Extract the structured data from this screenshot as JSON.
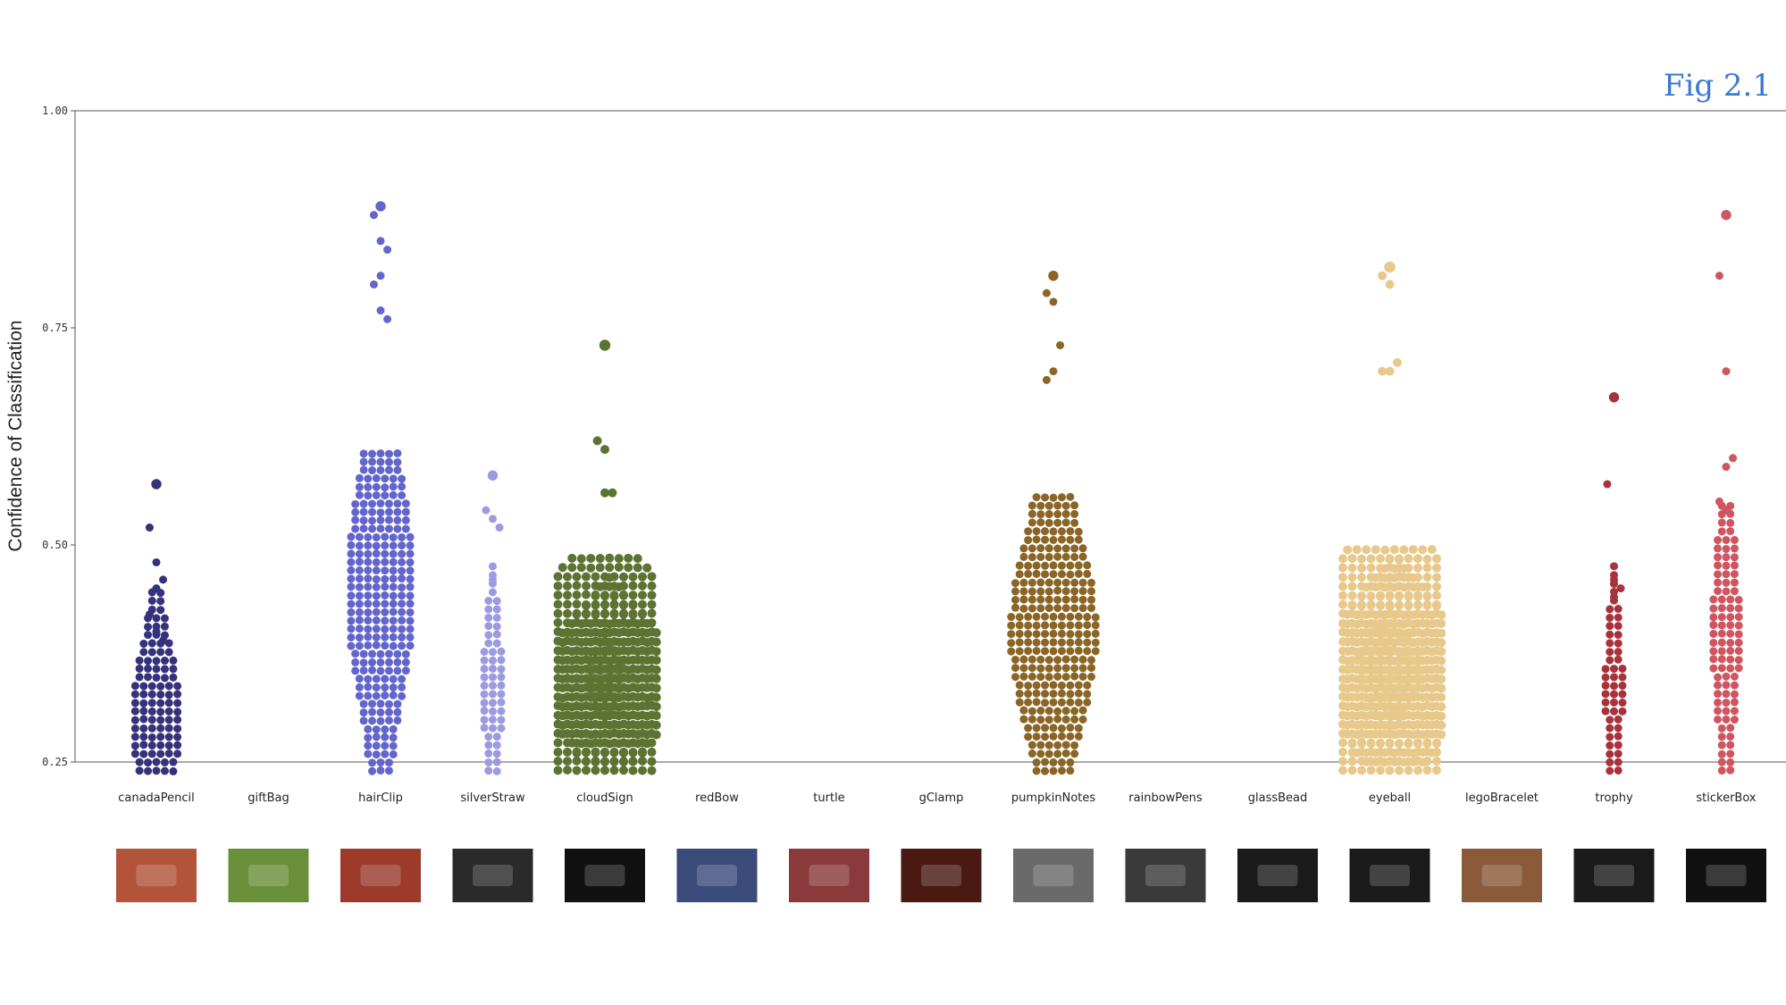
{
  "figure_label": "Fig 2.1",
  "chart_data": {
    "type": "scatter",
    "subtype": "beeswarm",
    "ylabel": "Confidence of Classification",
    "xlabel": "",
    "ylim": [
      0.25,
      1.0
    ],
    "yticks": [
      "0.25",
      "0.50",
      "0.75",
      "1.00"
    ],
    "categories": [
      "canadaPencil",
      "giftBag",
      "hairClip",
      "silverStraw",
      "cloudSign",
      "redBow",
      "turtle",
      "gClamp",
      "pumpkinNotes",
      "rainbowPens",
      "glassBead",
      "eyeball",
      "legoBracelet",
      "trophy",
      "stickerBox"
    ],
    "series": [
      {
        "category": "canadaPencil",
        "color": "#35317a",
        "count": 110,
        "median": 0.3,
        "max": 0.57,
        "outliers": [
          0.57,
          0.52,
          0.48,
          0.46,
          0.45,
          0.42,
          0.4,
          0.39
        ]
      },
      {
        "category": "giftBag",
        "color": "#cccccc",
        "count": 0,
        "median": null,
        "max": null,
        "outliers": []
      },
      {
        "category": "hairClip",
        "color": "#6365cc",
        "count": 260,
        "median": 0.45,
        "max": 0.89,
        "outliers": [
          0.89,
          0.88,
          0.85,
          0.84,
          0.81,
          0.8,
          0.77,
          0.76
        ]
      },
      {
        "category": "silverStraw",
        "color": "#9d9be0",
        "count": 60,
        "median": 0.33,
        "max": 0.58,
        "outliers": [
          0.58,
          0.54,
          0.53,
          0.52,
          0.46
        ]
      },
      {
        "category": "cloudSign",
        "color": "#5d7331",
        "count": 480,
        "median": 0.33,
        "max": 0.73,
        "outliers": [
          0.73,
          0.62,
          0.61,
          0.56,
          0.56
        ]
      },
      {
        "category": "redBow",
        "color": "#cccccc",
        "count": 0,
        "median": null,
        "max": null,
        "outliers": []
      },
      {
        "category": "turtle",
        "color": "#cccccc",
        "count": 0,
        "median": null,
        "max": null,
        "outliers": []
      },
      {
        "category": "gClamp",
        "color": "#cccccc",
        "count": 0,
        "median": null,
        "max": null,
        "outliers": []
      },
      {
        "category": "pumpkinNotes",
        "color": "#8a6526",
        "count": 280,
        "median": 0.4,
        "max": 0.81,
        "outliers": [
          0.81,
          0.79,
          0.78,
          0.73,
          0.7,
          0.69
        ]
      },
      {
        "category": "rainbowPens",
        "color": "#cccccc",
        "count": 0,
        "median": null,
        "max": null,
        "outliers": []
      },
      {
        "category": "glassBead",
        "color": "#cccccc",
        "count": 0,
        "median": null,
        "max": null,
        "outliers": []
      },
      {
        "category": "eyeball",
        "color": "#e8c98c",
        "count": 560,
        "median": 0.34,
        "max": 0.82,
        "outliers": [
          0.82,
          0.81,
          0.8,
          0.71,
          0.7,
          0.7
        ]
      },
      {
        "category": "legoBracelet",
        "color": "#cccccc",
        "count": 0,
        "median": null,
        "max": null,
        "outliers": []
      },
      {
        "category": "trophy",
        "color": "#a8323b",
        "count": 55,
        "median": 0.33,
        "max": 0.67,
        "outliers": [
          0.67,
          0.57,
          0.46,
          0.45,
          0.44
        ]
      },
      {
        "category": "stickerBox",
        "color": "#cf5660",
        "count": 100,
        "median": 0.4,
        "max": 0.88,
        "outliers": [
          0.88,
          0.81,
          0.7,
          0.6,
          0.59,
          0.55,
          0.54
        ]
      }
    ],
    "thumbnails": [
      {
        "category": "canadaPencil",
        "icon": "pencil-on-patterned-rug",
        "bg": "#b2543a"
      },
      {
        "category": "giftBag",
        "icon": "colorful-patterned-bag",
        "bg": "#6a8f3a"
      },
      {
        "category": "hairClip",
        "icon": "hair-clip-on-rug",
        "bg": "#9c3a2b"
      },
      {
        "category": "silverStraw",
        "icon": "silver-straw-dark",
        "bg": "#2a2a2a"
      },
      {
        "category": "cloudSign",
        "icon": "cloud-lightning-sign",
        "bg": "#111111"
      },
      {
        "category": "redBow",
        "icon": "red-bow-on-blue",
        "bg": "#3b4b7a"
      },
      {
        "category": "turtle",
        "icon": "turtle-phone-on-rug",
        "bg": "#8a3a3a"
      },
      {
        "category": "gClamp",
        "icon": "blue-g-clamp",
        "bg": "#4a1a12"
      },
      {
        "category": "pumpkinNotes",
        "icon": "pumpkin-notes-box",
        "bg": "#6a6a6a"
      },
      {
        "category": "rainbowPens",
        "icon": "rainbow-pens",
        "bg": "#3a3a3a"
      },
      {
        "category": "glassBead",
        "icon": "glass-beads-dark",
        "bg": "#1a1a1a"
      },
      {
        "category": "eyeball",
        "icon": "eyeball-dark",
        "bg": "#1a1a1a"
      },
      {
        "category": "legoBracelet",
        "icon": "lego-bracelet-wrist",
        "bg": "#8a5a3a"
      },
      {
        "category": "trophy",
        "icon": "trophy-dark",
        "bg": "#1a1a1a"
      },
      {
        "category": "stickerBox",
        "icon": "sticker-box-dark",
        "bg": "#111111"
      }
    ]
  }
}
